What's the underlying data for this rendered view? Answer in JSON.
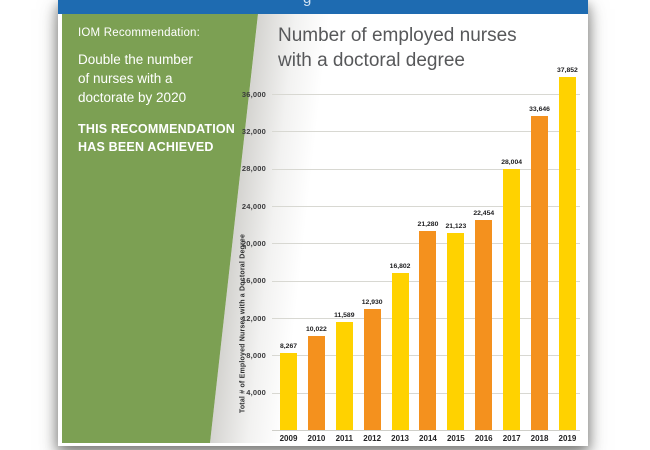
{
  "header": {
    "bar_color": "#1e6bb1",
    "partial_letter": "g"
  },
  "sidebar": {
    "bg_color": "#7ca053",
    "heading": "IOM Recommendation:",
    "body_lines": [
      "Double the number",
      "of nurses with a",
      "doctorate by 2020"
    ],
    "achievement_lines": [
      "THIS RECOMMENDATION",
      "HAS BEEN ACHIEVED"
    ]
  },
  "chart": {
    "title_line1": "Number of employed nurses",
    "title_line2": "with a doctoral degree",
    "title_color": "#57585a"
  },
  "chart_data": {
    "type": "bar",
    "title": "Number of employed nurses with a doctoral degree",
    "categories": [
      "2009",
      "2010",
      "2011",
      "2012",
      "2013",
      "2014",
      "2015",
      "2016",
      "2017",
      "2018",
      "2019"
    ],
    "values": [
      8267,
      10022,
      11589,
      12930,
      16802,
      21280,
      21123,
      22454,
      28004,
      33646,
      37852
    ],
    "value_labels": [
      "8,267",
      "10,022",
      "11,589",
      "12,930",
      "16,802",
      "21,280",
      "21,123",
      "22,454",
      "28,004",
      "33,646",
      "37,852"
    ],
    "xlabel": "",
    "ylabel": "Total # of Employed Nurses with a Doctoral Degree",
    "ylim": [
      0,
      38000
    ],
    "ytick_step": 4000,
    "ytick_labels": [
      "4,000",
      "8,000",
      "12,000",
      "16,000",
      "20,000",
      "24,000",
      "28,000",
      "32,000",
      "36,000"
    ],
    "grid": true,
    "legend": "none",
    "bar_color_even": "#ffd200",
    "bar_color_odd": "#f4911e"
  }
}
